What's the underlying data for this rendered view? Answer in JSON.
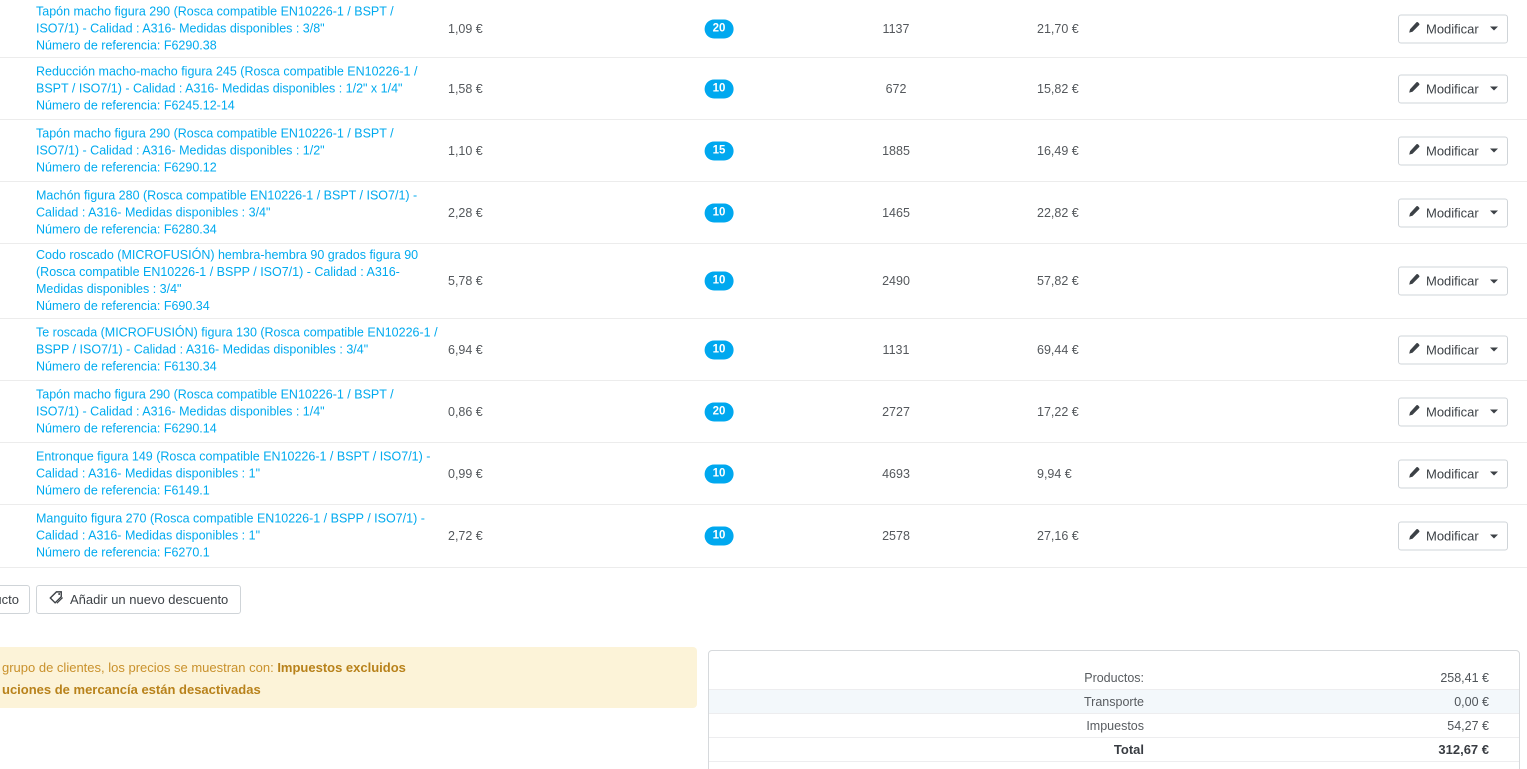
{
  "colors": {
    "accent_link": "#00aaef",
    "badge_bg": "#00a8ef",
    "warning_bg": "#fcf3d8",
    "warning_text": "#c9912c",
    "warning_text_bold": "#b8821b"
  },
  "table": {
    "action_label": "Modificar",
    "rows": [
      {
        "name": "Tapón macho figura 290 (Rosca compatible EN10226-1 / BSPT / ISO7/1) - Calidad : A316- Medidas disponibles : 3/8\"",
        "reference": "Número de referencia: F6290.38",
        "unit_price": "1,09 €",
        "quantity": "20",
        "stock": "1137",
        "total": "21,70 €"
      },
      {
        "name": "Reducción macho-macho figura 245 (Rosca compatible EN10226-1 / BSPT / ISO7/1) - Calidad : A316- Medidas disponibles : 1/2\" x 1/4\"",
        "reference": "Número de referencia: F6245.12-14",
        "unit_price": "1,58 €",
        "quantity": "10",
        "stock": "672",
        "total": "15,82 €"
      },
      {
        "name": "Tapón macho figura 290 (Rosca compatible EN10226-1 / BSPT / ISO7/1) - Calidad : A316- Medidas disponibles : 1/2\"",
        "reference": "Número de referencia: F6290.12",
        "unit_price": "1,10 €",
        "quantity": "15",
        "stock": "1885",
        "total": "16,49 €"
      },
      {
        "name": "Machón figura 280 (Rosca compatible EN10226-1 / BSPT / ISO7/1) - Calidad : A316- Medidas disponibles : 3/4\"",
        "reference": "Número de referencia: F6280.34",
        "unit_price": "2,28 €",
        "quantity": "10",
        "stock": "1465",
        "total": "22,82 €"
      },
      {
        "name": "Codo roscado (MICROFUSIÓN) hembra-hembra 90 grados figura 90 (Rosca compatible EN10226-1 / BSPP / ISO7/1) - Calidad : A316- Medidas disponibles : 3/4\"",
        "reference": "Número de referencia: F690.34",
        "unit_price": "5,78 €",
        "quantity": "10",
        "stock": "2490",
        "total": "57,82 €"
      },
      {
        "name": "Te roscada (MICROFUSIÓN) figura 130 (Rosca compatible EN10226-1 / BSPP / ISO7/1) - Calidad : A316- Medidas disponibles : 3/4\"",
        "reference": "Número de referencia: F6130.34",
        "unit_price": "6,94 €",
        "quantity": "10",
        "stock": "1131",
        "total": "69,44 €"
      },
      {
        "name": "Tapón macho figura 290 (Rosca compatible EN10226-1 / BSPT / ISO7/1) - Calidad : A316- Medidas disponibles : 1/4\"",
        "reference": "Número de referencia: F6290.14",
        "unit_price": "0,86 €",
        "quantity": "20",
        "stock": "2727",
        "total": "17,22 €"
      },
      {
        "name": "Entronque figura 149 (Rosca compatible EN10226-1 / BSPT / ISO7/1) - Calidad : A316- Medidas disponibles : 1\"",
        "reference": "Número de referencia: F6149.1",
        "unit_price": "0,99 €",
        "quantity": "10",
        "stock": "4693",
        "total": "9,94 €"
      },
      {
        "name": "Manguito figura 270 (Rosca compatible EN10226-1 / BSPP / ISO7/1) - Calidad : A316- Medidas disponibles : 1\"",
        "reference": "Número de referencia: F6270.1",
        "unit_price": "2,72 €",
        "quantity": "10",
        "stock": "2578",
        "total": "27,16 €"
      }
    ]
  },
  "buttons": {
    "add_product_fragment": "ucto",
    "add_discount": "Añadir un nuevo descuento"
  },
  "alert": {
    "line1_normal": "grupo de clientes, los precios se muestran con: ",
    "line1_bold": "Impuestos excluidos",
    "line2_bold": "uciones de mercancía están desactivadas"
  },
  "totals": {
    "rows": [
      {
        "label": "Productos:",
        "value": "258,41 €",
        "highlight": false,
        "bold": false
      },
      {
        "label": "Transporte",
        "value": "0,00 €",
        "highlight": true,
        "bold": false
      },
      {
        "label": "Impuestos",
        "value": "54,27 €",
        "highlight": false,
        "bold": false
      },
      {
        "label": "Total",
        "value": "312,67 €",
        "highlight": false,
        "bold": true
      }
    ]
  }
}
